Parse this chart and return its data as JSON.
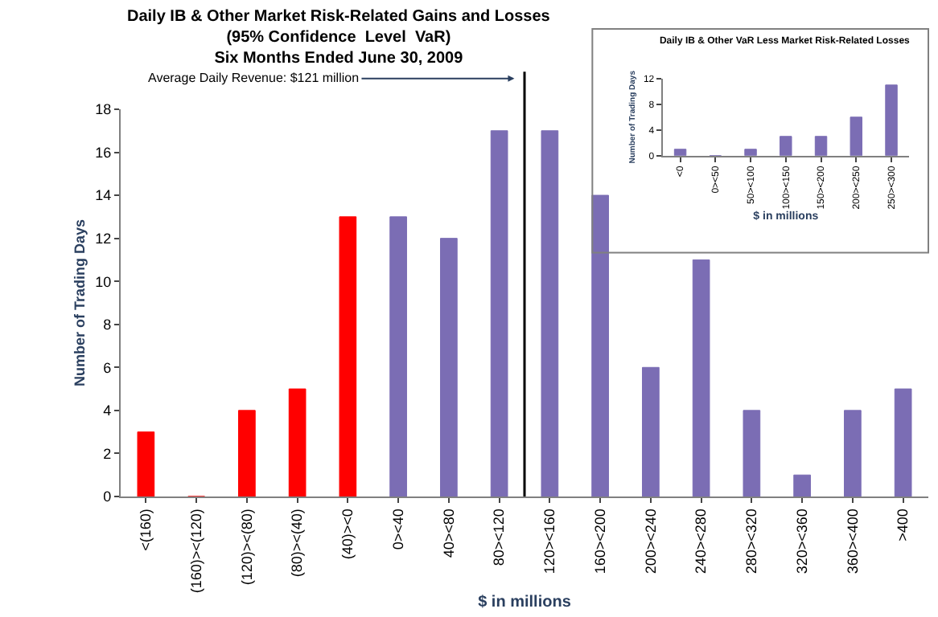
{
  "chart_data": [
    {
      "type": "bar",
      "title": "Daily IB & Other Market Risk-Related Gains and Losses",
      "subtitle": "(95% Confidence  Level  VaR)\nSix Months Ended June 30, 2009",
      "xlabel": "$ in millions",
      "ylabel": "Number of Trading Days",
      "categories": [
        "<(160)",
        "(160)><(120)",
        "(120)><(80)",
        "(80)><(40)",
        "(40)><0",
        "0><40",
        "40><80",
        "80><120",
        "120><160",
        "160><200",
        "200><240",
        "240><280",
        "280><320",
        "320><360",
        "360><400",
        ">400"
      ],
      "values": [
        3,
        0,
        4,
        5,
        13,
        13,
        12,
        17,
        17,
        14,
        6,
        11,
        4,
        1,
        4,
        5
      ],
      "colors": [
        "#ff0000",
        "#ff0000",
        "#ff0000",
        "#ff0000",
        "#ff0000",
        "#7b6db4",
        "#7b6db4",
        "#7b6db4",
        "#7b6db4",
        "#7b6db4",
        "#7b6db4",
        "#7b6db4",
        "#7b6db4",
        "#7b6db4",
        "#7b6db4",
        "#7b6db4"
      ],
      "ylim": [
        0,
        18
      ],
      "yticks": [
        0,
        2,
        4,
        6,
        8,
        10,
        12,
        14,
        16,
        18
      ],
      "annotations": [
        "Average Daily Revenue: $121 million"
      ]
    },
    {
      "type": "bar",
      "title": "Daily IB & Other VaR Less Market Risk-Related Losses",
      "xlabel": "$ in millions",
      "ylabel": "Number of Trading Days",
      "categories": [
        "<0",
        "0><50",
        "50><100",
        "100><150",
        "150><200",
        "200><250",
        "250><300"
      ],
      "values": [
        1,
        0,
        1,
        3,
        3,
        6,
        11
      ],
      "color": "#7b6db4",
      "ylim": [
        0,
        12
      ],
      "yticks": [
        0,
        4,
        8,
        12
      ]
    }
  ]
}
